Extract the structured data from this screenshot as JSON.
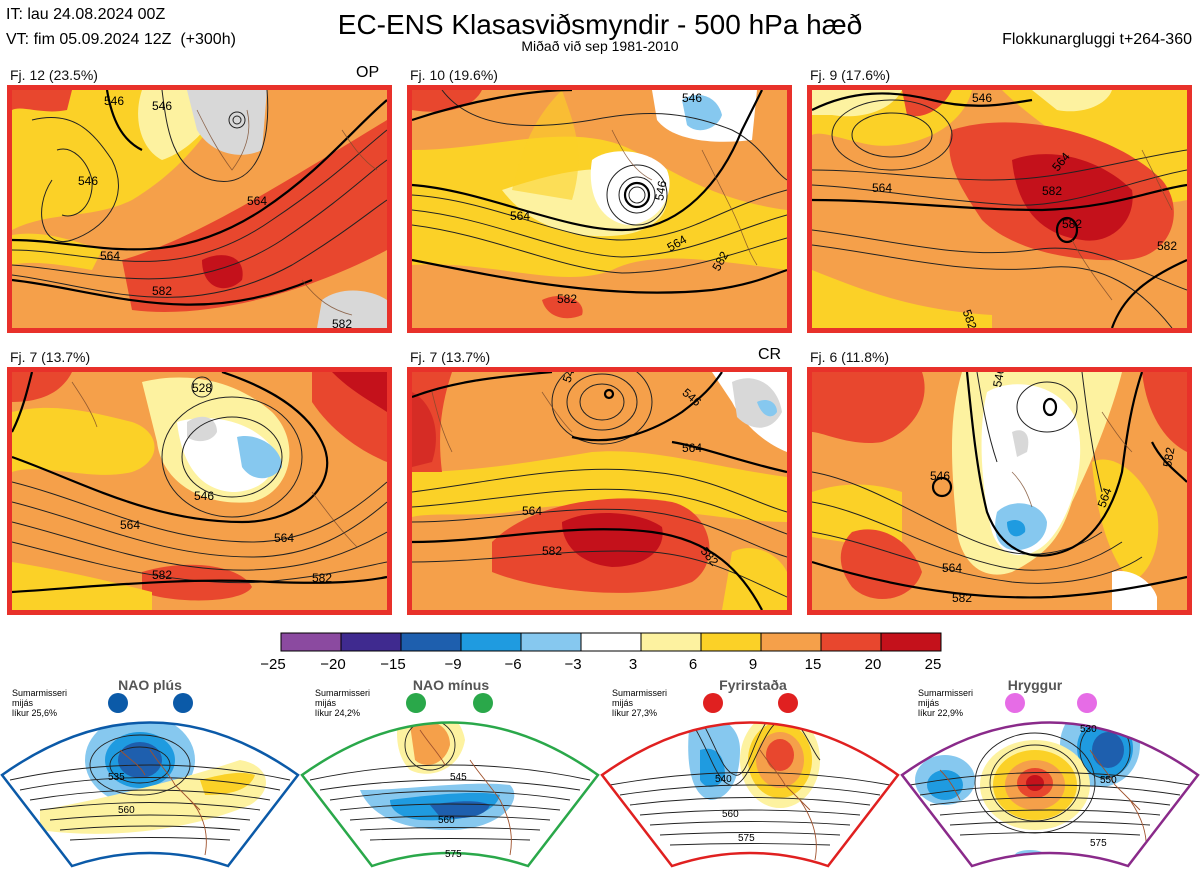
{
  "header": {
    "it": "IT: lau 24.08.2024 00Z",
    "vt": "VT: fim 05.09.2024 12Z  (+300h)",
    "title": "EC-ENS Klasasviðsmyndir - 500 hPa hæð",
    "subtitle": "Miðað við sep 1981-2010",
    "window": "Flokkunargluggi t+264-360"
  },
  "panels": [
    {
      "label": "Fj. 12 (23.5%)",
      "tag": "OP",
      "contours": [
        "546",
        "546",
        "564",
        "564",
        "582",
        "582",
        "546"
      ]
    },
    {
      "label": "Fj. 10 (19.6%)",
      "tag": "",
      "contours": [
        "546",
        "546",
        "564",
        "564",
        "582",
        "582"
      ]
    },
    {
      "label": "Fj. 9 (17.6%)",
      "tag": "",
      "contours": [
        "546",
        "564",
        "564",
        "582",
        "582",
        "582",
        "582"
      ]
    },
    {
      "label": "Fj. 7 (13.7%)",
      "tag": "",
      "contours": [
        "564",
        "546",
        "564",
        "582",
        "582",
        "528"
      ]
    },
    {
      "label": "Fj. 7 (13.7%)",
      "tag": "CR",
      "contours": [
        "546",
        "546",
        "564",
        "582",
        "582",
        "564"
      ]
    },
    {
      "label": "Fj. 6 (11.8%)",
      "tag": "",
      "contours": [
        "546",
        "546",
        "564",
        "564",
        "582",
        "582"
      ]
    }
  ],
  "colorbar": {
    "ticks": [
      "−25",
      "−20",
      "−15",
      "−9",
      "−6",
      "−3",
      "3",
      "6",
      "9",
      "15",
      "20",
      "25"
    ],
    "colors": [
      "#8b4aa0",
      "#3f2a8f",
      "#1e5fae",
      "#1f9be0",
      "#86c8ef",
      "#ffffff",
      "#fdf2a0",
      "#fbd127",
      "#f5a04a",
      "#e8472e",
      "#c4111b"
    ]
  },
  "regimes": [
    {
      "name": "NAO plús",
      "season": "Sumarmisseri",
      "avg": "mijás",
      "prob": "líkur 25,6%",
      "color": "#0b5aa8",
      "dot": "#0b5aa8",
      "contours": [
        "535",
        "560"
      ]
    },
    {
      "name": "NAO mínus",
      "season": "Sumarmisseri",
      "avg": "mijás",
      "prob": "líkur 24,2%",
      "color": "#2aa84a",
      "dot": "#2aa84a",
      "contours": [
        "545",
        "560",
        "575"
      ]
    },
    {
      "name": "Fyrirstaða",
      "season": "Sumarmisseri",
      "avg": "mijás",
      "prob": "líkur 27,3%",
      "color": "#e02020",
      "dot": "#e02020",
      "contours": [
        "540",
        "560",
        "575"
      ]
    },
    {
      "name": "Hryggur",
      "season": "Sumarmisseri",
      "avg": "mijás",
      "prob": "líkur 22,9%",
      "color": "#8a2a8a",
      "dot": "#e66ce6",
      "contours": [
        "530",
        "550",
        "575"
      ]
    }
  ]
}
